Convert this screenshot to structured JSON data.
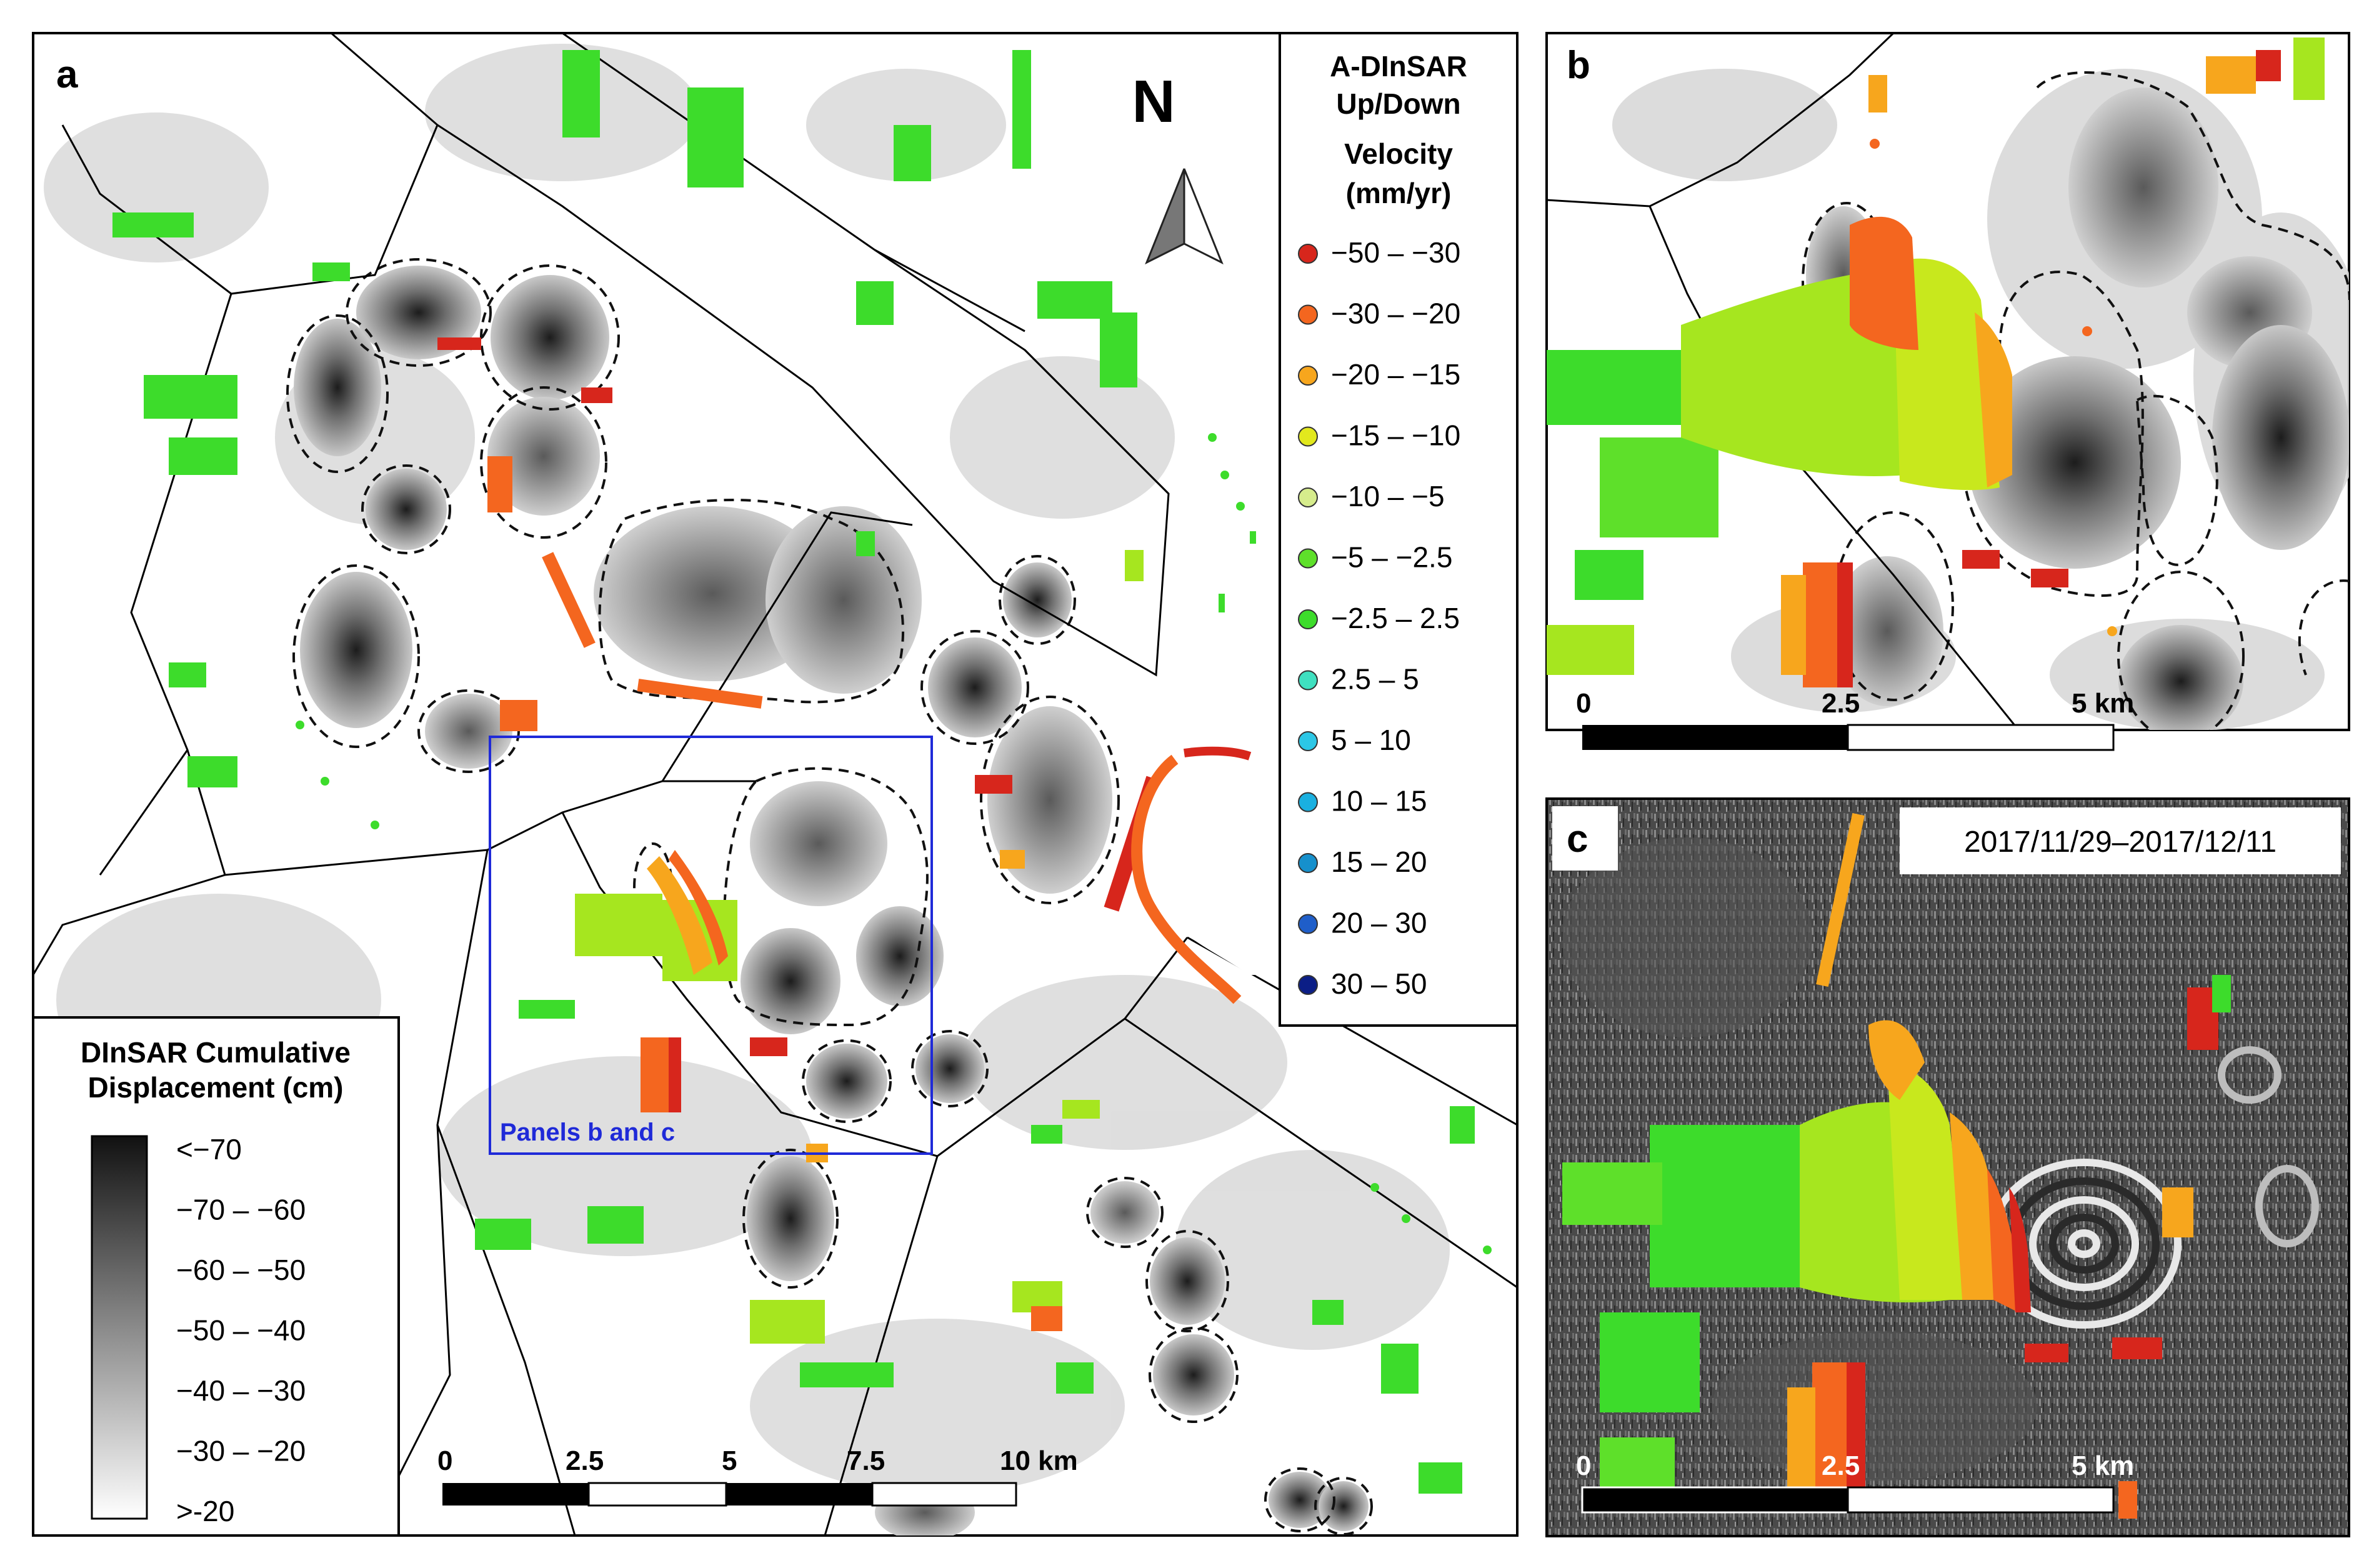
{
  "panels": {
    "a": {
      "label": "a",
      "north_label": "N",
      "inset_label": "Panels b and c",
      "scale_ticks": [
        "0",
        "2.5",
        "5",
        "7.5",
        "10 km"
      ]
    },
    "b": {
      "label": "b",
      "scale_ticks": [
        "0",
        "2.5",
        "5 km"
      ]
    },
    "c": {
      "label": "c",
      "date_range": "2017/11/29–2017/12/11",
      "scale_ticks": [
        "0",
        "2.5",
        "5 km"
      ]
    }
  },
  "velocity_legend": {
    "title_lines": [
      "A-DInSAR",
      "Up/Down",
      "Velocity",
      "(mm/yr)"
    ],
    "classes": [
      {
        "label": "−50 – −30",
        "color": "#d7261c"
      },
      {
        "label": "−30 – −20",
        "color": "#f4661f"
      },
      {
        "label": "−20 – −15",
        "color": "#f7a61d"
      },
      {
        "label": "−15 – −10",
        "color": "#e2e81d"
      },
      {
        "label": "−10 – −5",
        "color": "#d6ec8c"
      },
      {
        "label": "−5 – −2.5",
        "color": "#5ee02a"
      },
      {
        "label": "−2.5 – 2.5",
        "color": "#3ddc2b"
      },
      {
        "label": "2.5 – 5",
        "color": "#3fe0c0"
      },
      {
        "label": "5 – 10",
        "color": "#2cc7e6"
      },
      {
        "label": "10 – 15",
        "color": "#1ab0e0"
      },
      {
        "label": "15 – 20",
        "color": "#1690cc"
      },
      {
        "label": "20 – 30",
        "color": "#1f5ec9"
      },
      {
        "label": "30 – 50",
        "color": "#0b1e86"
      }
    ]
  },
  "displacement_legend": {
    "title_lines": [
      "DInSAR Cumulative",
      "Displacement (cm)"
    ],
    "classes": [
      "<−70",
      "−70 – −60",
      "−60 – −50",
      "−50 – −40",
      "−40 – −30",
      "−30 – −20",
      ">-20"
    ]
  }
}
